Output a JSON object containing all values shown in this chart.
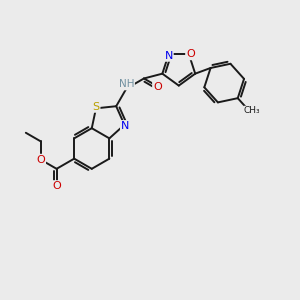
{
  "background_color": "#ebebeb",
  "bond_color": "#1a1a1a",
  "figsize": [
    3.0,
    3.0
  ],
  "dpi": 100,
  "bond_width": 1.4,
  "S_color": "#b8a000",
  "N_color": "#0000ee",
  "O_color": "#cc0000",
  "NH_color": "#7090a0",
  "C_color": "#1a1a1a",
  "xlim": [
    0,
    10
  ],
  "ylim": [
    0,
    10
  ]
}
